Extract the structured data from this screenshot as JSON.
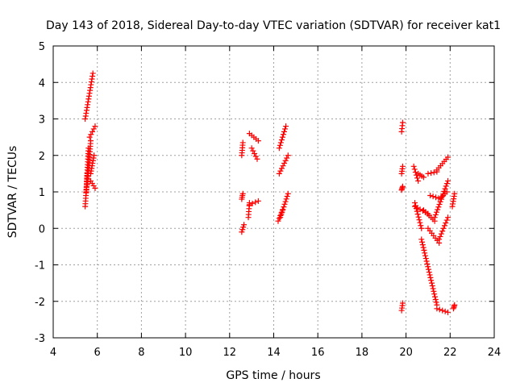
{
  "chart_data": {
    "type": "scatter",
    "title": "Day 143 of 2018, Sidereal Day-to-day VTEC variation (SDTVAR) for receiver kat1",
    "xlabel": "GPS time / hours",
    "ylabel": "SDTVAR / TECUs",
    "xlim": [
      4,
      24
    ],
    "ylim": [
      -3,
      5
    ],
    "x_ticks": [
      "4",
      "6",
      "8",
      "10",
      "12",
      "14",
      "16",
      "18",
      "20",
      "22",
      "24"
    ],
    "y_ticks": [
      "-3",
      "-2",
      "-1",
      "0",
      "1",
      "2",
      "3",
      "4",
      "5"
    ],
    "grid": true,
    "marker": "+",
    "color": "#ff0000",
    "segments": [
      {
        "x0": 5.45,
        "x1": 5.8,
        "y0": 3.0,
        "y1": 4.25
      },
      {
        "x0": 5.45,
        "x1": 5.55,
        "y0": 0.6,
        "y1": 1.5
      },
      {
        "x0": 5.5,
        "x1": 5.6,
        "y0": 1.0,
        "y1": 2.2
      },
      {
        "x0": 5.55,
        "x1": 5.7,
        "y0": 1.2,
        "y1": 2.4
      },
      {
        "x0": 5.65,
        "x1": 5.9,
        "y0": 2.5,
        "y1": 2.8
      },
      {
        "x0": 5.7,
        "x1": 5.85,
        "y0": 1.5,
        "y1": 2.0
      },
      {
        "x0": 5.7,
        "x1": 5.9,
        "y0": 1.3,
        "y1": 1.1
      },
      {
        "x0": 12.55,
        "x1": 12.6,
        "y0": 2.0,
        "y1": 2.35
      },
      {
        "x0": 12.55,
        "x1": 12.6,
        "y0": 0.8,
        "y1": 0.95
      },
      {
        "x0": 12.55,
        "x1": 12.65,
        "y0": -0.1,
        "y1": 0.1
      },
      {
        "x0": 12.85,
        "x1": 12.9,
        "y0": 0.3,
        "y1": 0.7
      },
      {
        "x0": 12.9,
        "x1": 13.3,
        "y0": 0.65,
        "y1": 0.75
      },
      {
        "x0": 12.9,
        "x1": 13.3,
        "y0": 2.6,
        "y1": 2.4
      },
      {
        "x0": 13.0,
        "x1": 13.25,
        "y0": 2.2,
        "y1": 1.9
      },
      {
        "x0": 14.25,
        "x1": 14.55,
        "y0": 2.2,
        "y1": 2.8
      },
      {
        "x0": 14.25,
        "x1": 14.65,
        "y0": 1.5,
        "y1": 2.0
      },
      {
        "x0": 14.3,
        "x1": 14.65,
        "y0": 0.3,
        "y1": 0.95
      },
      {
        "x0": 14.2,
        "x1": 14.4,
        "y0": 0.2,
        "y1": 0.5
      },
      {
        "x0": 19.8,
        "x1": 19.85,
        "y0": 2.65,
        "y1": 2.9
      },
      {
        "x0": 19.8,
        "x1": 19.85,
        "y0": 1.5,
        "y1": 1.7
      },
      {
        "x0": 19.8,
        "x1": 19.85,
        "y0": 1.05,
        "y1": 1.15
      },
      {
        "x0": 19.8,
        "x1": 19.85,
        "y0": -2.25,
        "y1": -2.05
      },
      {
        "x0": 20.35,
        "x1": 20.55,
        "y0": 1.7,
        "y1": 1.3
      },
      {
        "x0": 20.55,
        "x1": 20.8,
        "y0": 1.5,
        "y1": 1.4
      },
      {
        "x0": 20.4,
        "x1": 20.7,
        "y0": 0.7,
        "y1": 0.0
      },
      {
        "x0": 20.7,
        "x1": 21.4,
        "y0": -0.3,
        "y1": -2.1
      },
      {
        "x0": 21.4,
        "x1": 21.9,
        "y0": -2.2,
        "y1": -2.3
      },
      {
        "x0": 20.4,
        "x1": 21.0,
        "y0": 0.6,
        "y1": 0.4
      },
      {
        "x0": 21.0,
        "x1": 21.5,
        "y0": 0.0,
        "y1": -0.4
      },
      {
        "x0": 21.5,
        "x1": 21.9,
        "y0": -0.3,
        "y1": 0.3
      },
      {
        "x0": 20.8,
        "x1": 21.3,
        "y0": 0.5,
        "y1": 0.2
      },
      {
        "x0": 21.3,
        "x1": 21.9,
        "y0": 0.3,
        "y1": 1.3
      },
      {
        "x0": 21.0,
        "x1": 21.4,
        "y0": 1.5,
        "y1": 1.55
      },
      {
        "x0": 21.4,
        "x1": 21.9,
        "y0": 1.6,
        "y1": 1.95
      },
      {
        "x0": 21.1,
        "x1": 21.6,
        "y0": 0.9,
        "y1": 0.8
      },
      {
        "x0": 21.6,
        "x1": 21.85,
        "y0": 0.85,
        "y1": 1.0
      },
      {
        "x0": 22.1,
        "x1": 22.2,
        "y0": 0.6,
        "y1": 0.95
      },
      {
        "x0": 22.15,
        "x1": 22.2,
        "y0": -2.2,
        "y1": -2.1
      }
    ]
  }
}
